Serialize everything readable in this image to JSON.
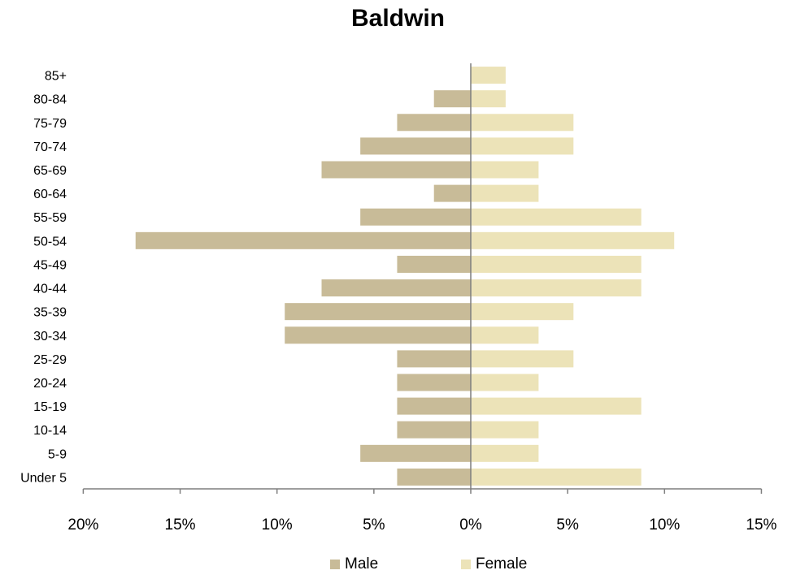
{
  "chart_data": {
    "type": "bar",
    "orientation": "horizontal",
    "title": "Baldwin",
    "categories": [
      "85+",
      "80-84",
      "75-79",
      "70-74",
      "65-69",
      "60-64",
      "55-59",
      "50-54",
      "45-49",
      "40-44",
      "35-39",
      "30-34",
      "25-29",
      "20-24",
      "15-19",
      "10-14",
      "5-9",
      "Under 5"
    ],
    "series": [
      {
        "name": "Male",
        "color": "#c8bb98",
        "values": [
          0,
          1.9,
          3.8,
          5.7,
          7.7,
          1.9,
          5.7,
          17.3,
          3.8,
          7.7,
          9.6,
          9.6,
          3.8,
          3.8,
          3.8,
          3.8,
          5.7,
          3.8
        ]
      },
      {
        "name": "Female",
        "color": "#ece3b8",
        "values": [
          1.8,
          1.8,
          5.3,
          5.3,
          3.5,
          3.5,
          8.8,
          10.5,
          8.8,
          8.8,
          5.3,
          3.5,
          5.3,
          3.5,
          8.8,
          3.5,
          3.5,
          8.8
        ]
      }
    ],
    "x_ticks": [
      -20,
      -15,
      -10,
      -5,
      0,
      5,
      10,
      15
    ],
    "x_tick_labels": [
      "20%",
      "15%",
      "10%",
      "5%",
      "0%",
      "5%",
      "10%",
      "15%"
    ],
    "xlim": [
      -20,
      15
    ],
    "xlabel": "",
    "ylabel": "",
    "grid": false,
    "legend_position": "bottom"
  },
  "legend": {
    "male_label": "Male",
    "female_label": "Female"
  }
}
